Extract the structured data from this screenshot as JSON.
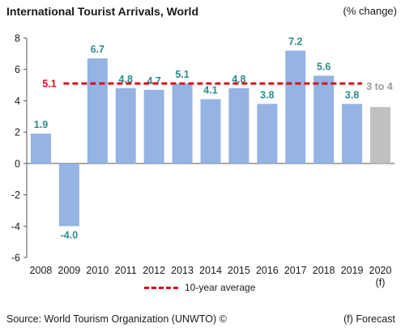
{
  "chart_data": {
    "type": "bar",
    "title": "International Tourist Arrivals, World",
    "unit": "(% change)",
    "categories": [
      "2008",
      "2009",
      "2010",
      "2011",
      "2012",
      "2013",
      "2014",
      "2015",
      "2016",
      "2017",
      "2018",
      "2019",
      "2020"
    ],
    "values": [
      1.9,
      -4.0,
      6.7,
      4.8,
      4.7,
      5.1,
      4.1,
      4.8,
      3.8,
      7.2,
      5.6,
      3.8,
      3.6
    ],
    "data_labels": [
      "1.9",
      "-4.0",
      "6.7",
      "4.8",
      "4.7",
      "5.1",
      "4.1",
      "4.8",
      "3.8",
      "7.2",
      "5.6",
      "3.8",
      "3 to 4"
    ],
    "forecast_index": 12,
    "forecast_marker": "(f)",
    "ylim": [
      -6,
      8
    ],
    "yticks": [
      -6,
      -4,
      -2,
      0,
      2,
      4,
      6,
      8
    ],
    "average": {
      "label": "10-year average",
      "value": 5.1,
      "value_label": "5.1",
      "color": "#d90f19"
    },
    "colors": {
      "bar": "#95b3e3",
      "forecast_bar": "#c0c0c0",
      "label": "#2a8c8c",
      "forecast_label": "#9a9a9a"
    },
    "grid": false,
    "legend_position": "bottom"
  },
  "footer": {
    "source": "Source: World Tourism Organization (UNWTO) ©",
    "note": "(f) Forecast"
  }
}
